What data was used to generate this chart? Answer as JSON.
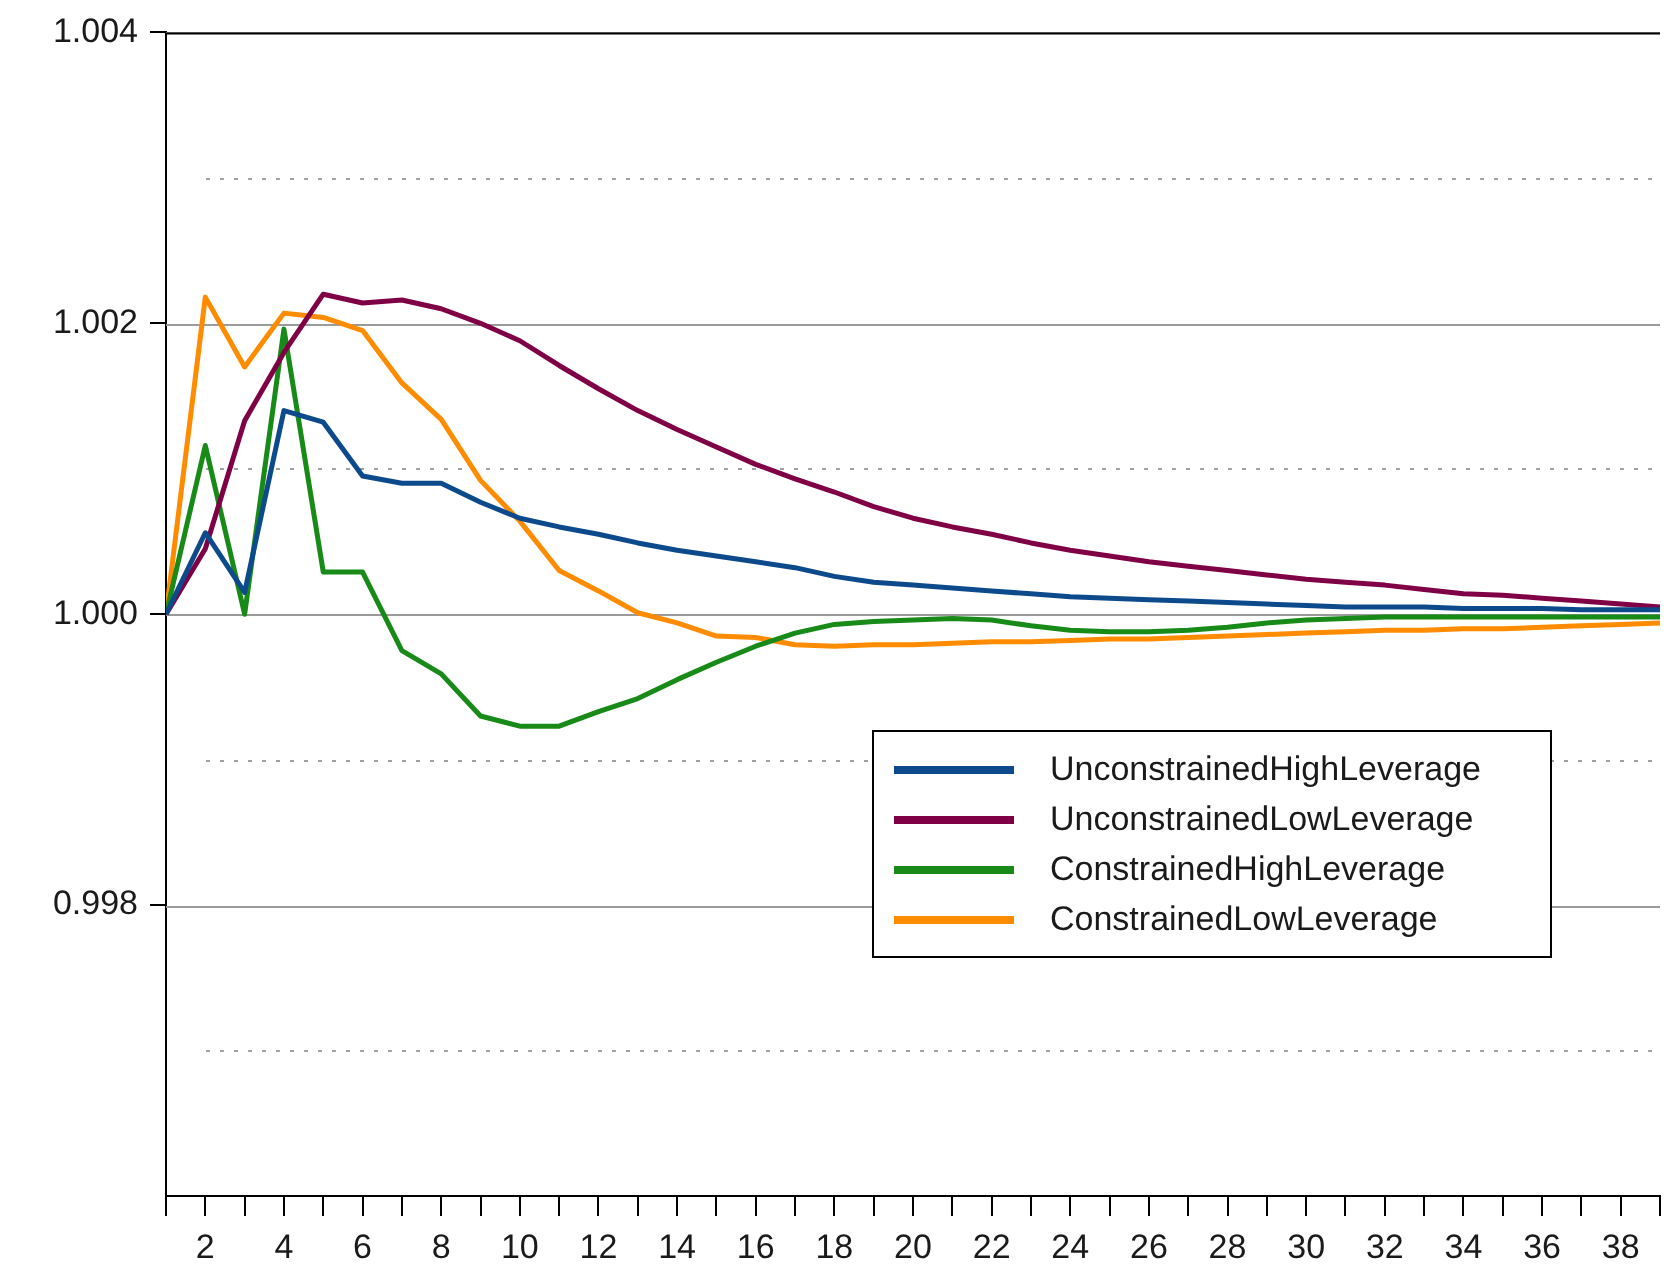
{
  "chart_data": {
    "type": "line",
    "x": [
      1,
      2,
      3,
      4,
      5,
      6,
      7,
      8,
      9,
      10,
      11,
      12,
      13,
      14,
      15,
      16,
      17,
      18,
      19,
      20,
      21,
      22,
      23,
      24,
      25,
      26,
      27,
      28,
      29,
      30,
      31,
      32,
      33,
      34,
      35,
      36,
      37,
      38,
      39
    ],
    "series": [
      {
        "name": "UnconstrainedHighLeverage",
        "color": "#0d4a8c",
        "values": [
          1.0,
          1.00056,
          1.00015,
          1.0014,
          1.00132,
          1.00095,
          1.0009,
          1.0009,
          1.00077,
          1.00066,
          1.0006,
          1.00055,
          1.00049,
          1.00044,
          1.0004,
          1.00036,
          1.00032,
          1.00026,
          1.00022,
          1.0002,
          1.00018,
          1.00016,
          1.00014,
          1.00012,
          1.00011,
          1.0001,
          1.00009,
          1.00008,
          1.00007,
          1.00006,
          1.00005,
          1.00005,
          1.00005,
          1.00004,
          1.00004,
          1.00004,
          1.00003,
          1.00003,
          1.00003
        ]
      },
      {
        "name": "UnconstrainedLowLeverage",
        "color": "#800046",
        "values": [
          1.0,
          1.00045,
          1.00133,
          1.0018,
          1.0022,
          1.00214,
          1.00216,
          1.0021,
          1.002,
          1.00188,
          1.00171,
          1.00155,
          1.0014,
          1.00127,
          1.00115,
          1.00103,
          1.00093,
          1.00084,
          1.00074,
          1.00066,
          1.0006,
          1.00055,
          1.00049,
          1.00044,
          1.0004,
          1.00036,
          1.00033,
          1.0003,
          1.00027,
          1.00024,
          1.00022,
          1.0002,
          1.00017,
          1.00014,
          1.00013,
          1.00011,
          1.00009,
          1.00007,
          1.00005
        ]
      },
      {
        "name": "ConstrainedHighLeverage",
        "color": "#178a17",
        "values": [
          1.0,
          1.00116,
          1.0,
          1.00196,
          1.00029,
          1.00029,
          0.99975,
          0.99959,
          0.9993,
          0.99923,
          0.99923,
          0.99933,
          0.99942,
          0.99955,
          0.99967,
          0.99978,
          0.99987,
          0.99993,
          0.99995,
          0.99996,
          0.99997,
          0.99996,
          0.99992,
          0.99989,
          0.99988,
          0.99988,
          0.99989,
          0.99991,
          0.99994,
          0.99996,
          0.99997,
          0.99998,
          0.99998,
          0.99998,
          0.99998,
          0.99998,
          0.99998,
          0.99998,
          0.99998
        ]
      },
      {
        "name": "ConstrainedLowLeverage",
        "color": "#ff8c00",
        "values": [
          1.0,
          1.00218,
          1.0017,
          1.00207,
          1.00204,
          1.00195,
          1.00159,
          1.00134,
          1.00092,
          1.00064,
          1.0003,
          1.00016,
          1.00001,
          0.99994,
          0.99985,
          0.99984,
          0.99979,
          0.99978,
          0.99979,
          0.99979,
          0.9998,
          0.99981,
          0.99981,
          0.99982,
          0.99983,
          0.99983,
          0.99984,
          0.99985,
          0.99986,
          0.99987,
          0.99988,
          0.99989,
          0.99989,
          0.9999,
          0.9999,
          0.99991,
          0.99992,
          0.99993,
          0.99994
        ]
      }
    ],
    "xlim": [
      1,
      39
    ],
    "xticks": [
      {
        "value": 1,
        "label": null
      },
      2,
      {
        "value": 3,
        "label": null
      },
      4,
      {
        "value": 5,
        "label": null
      },
      6,
      {
        "value": 7,
        "label": null
      },
      8,
      {
        "value": 9,
        "label": null
      },
      10,
      {
        "value": 11,
        "label": null
      },
      12,
      {
        "value": 13,
        "label": null
      },
      14,
      {
        "value": 15,
        "label": null
      },
      16,
      {
        "value": 17,
        "label": null
      },
      18,
      {
        "value": 19,
        "label": null
      },
      20,
      {
        "value": 21,
        "label": null
      },
      22,
      {
        "value": 23,
        "label": null
      },
      24,
      {
        "value": 25,
        "label": null
      },
      26,
      {
        "value": 27,
        "label": null
      },
      28,
      {
        "value": 29,
        "label": null
      },
      30,
      {
        "value": 31,
        "label": null
      },
      32,
      {
        "value": 33,
        "label": null
      },
      34,
      {
        "value": 35,
        "label": null
      },
      36,
      {
        "value": 37,
        "label": null
      },
      38,
      {
        "value": 39,
        "label": null
      }
    ],
    "ylim": [
      0.996,
      1.004
    ],
    "yticks": [
      {
        "value": 0.997,
        "label": null
      },
      {
        "value": 0.998,
        "label": "0.998"
      },
      {
        "value": 0.999,
        "label": null
      },
      {
        "value": 1.0,
        "label": "1.000"
      },
      {
        "value": 1.001,
        "label": null
      },
      {
        "value": 1.002,
        "label": "1.002"
      },
      {
        "value": 1.003,
        "label": null
      },
      {
        "value": 1.004,
        "label": "1.004"
      }
    ],
    "grid": "y",
    "legend": "right",
    "marker": "none",
    "line_style": "solid"
  }
}
